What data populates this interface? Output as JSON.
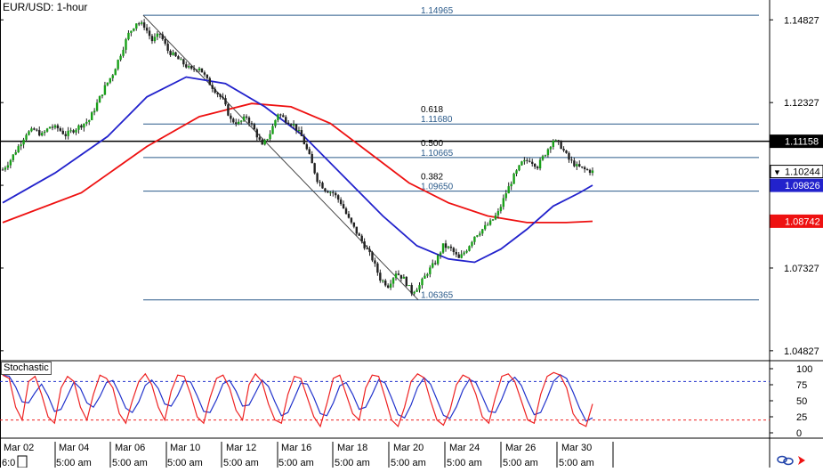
{
  "chart_data": {
    "type": "line",
    "title": "EUR/USD: 1-hour",
    "chart_kind": "candlestick",
    "price_axis": {
      "ticks": [
        "1.14827",
        "1.12327",
        "1.09827",
        "1.07327",
        "1.04827"
      ],
      "tick_values": [
        1.14827,
        1.12327,
        1.09827,
        1.07327,
        1.04827
      ],
      "range": [
        1.04527,
        1.15427
      ]
    },
    "price_tags": [
      {
        "label": "1.11158",
        "value": 1.11158,
        "bg": "#000000",
        "fg": "#ffffff"
      },
      {
        "label": "1.10244",
        "value": 1.10244,
        "bg": "#ffffff",
        "fg": "#000000",
        "arrow": "▼"
      },
      {
        "label": "1.09826",
        "value": 1.09826,
        "bg": "#2222cc",
        "fg": "#ffffff"
      },
      {
        "label": "1.08742",
        "value": 1.08742,
        "bg": "#ee1111",
        "fg": "#ffffff"
      }
    ],
    "horizontal_line": {
      "value": 1.11158,
      "color": "#000000"
    },
    "fibonacci": {
      "color": "#2a5a8a",
      "swing_high": 1.14965,
      "swing_low": 1.06365,
      "levels": [
        {
          "ratio": "",
          "label": "1.14965",
          "value": 1.14965
        },
        {
          "ratio": "0.618",
          "label": "1.11680",
          "value": 1.1168
        },
        {
          "ratio": "0.500",
          "label": "1.10665",
          "value": 1.10665
        },
        {
          "ratio": "0.382",
          "label": "1.09650",
          "value": 1.0965
        },
        {
          "ratio": "",
          "label": "1.06365",
          "value": 1.06365
        }
      ]
    },
    "x_axis": {
      "date_labels": [
        "Mar 02",
        "Mar 04",
        "Mar 06",
        "Mar 10",
        "Mar 12",
        "Mar 16",
        "Mar 18",
        "Mar 20",
        "Mar 24",
        "Mar 26",
        "Mar 30"
      ],
      "time_labels": [
        "6:0",
        "5:00 am",
        "5:00 am",
        "5:00 am",
        "5:00 am",
        "5:00 am",
        "5:00 am",
        "5:00 am",
        "5:00 am",
        "5:00 am",
        "5:00 am"
      ]
    },
    "close_series": [
      [
        0,
        1.103
      ],
      [
        3,
        1.106
      ],
      [
        6,
        1.11
      ],
      [
        9,
        1.114
      ],
      [
        12,
        1.115
      ],
      [
        15,
        1.1135
      ],
      [
        18,
        1.116
      ],
      [
        21,
        1.1155
      ],
      [
        24,
        1.1135
      ],
      [
        27,
        1.115
      ],
      [
        30,
        1.1165
      ],
      [
        33,
        1.118
      ],
      [
        36,
        1.123
      ],
      [
        39,
        1.128
      ],
      [
        42,
        1.132
      ],
      [
        45,
        1.138
      ],
      [
        48,
        1.144
      ],
      [
        51,
        1.1475
      ],
      [
        54,
        1.1465
      ],
      [
        57,
        1.142
      ],
      [
        60,
        1.144
      ],
      [
        63,
        1.139
      ],
      [
        66,
        1.137
      ],
      [
        69,
        1.135
      ],
      [
        72,
        1.133
      ],
      [
        75,
        1.134
      ],
      [
        78,
        1.13
      ],
      [
        81,
        1.127
      ],
      [
        84,
        1.124
      ],
      [
        87,
        1.118
      ],
      [
        90,
        1.117
      ],
      [
        93,
        1.119
      ],
      [
        96,
        1.115
      ],
      [
        99,
        1.11
      ],
      [
        102,
        1.114
      ],
      [
        105,
        1.12
      ],
      [
        108,
        1.118
      ],
      [
        111,
        1.1165
      ],
      [
        114,
        1.113
      ],
      [
        117,
        1.107
      ],
      [
        120,
        1.1
      ],
      [
        123,
        1.097
      ],
      [
        126,
        1.096
      ],
      [
        129,
        1.093
      ],
      [
        132,
        1.088
      ],
      [
        135,
        1.084
      ],
      [
        138,
        1.08
      ],
      [
        141,
        1.076
      ],
      [
        144,
        1.07
      ],
      [
        147,
        1.068
      ],
      [
        150,
        1.072
      ],
      [
        153,
        1.07
      ],
      [
        156,
        1.066
      ],
      [
        159,
        1.068
      ],
      [
        162,
        1.072
      ],
      [
        165,
        1.075
      ],
      [
        168,
        1.08
      ],
      [
        171,
        1.079
      ],
      [
        174,
        1.076
      ],
      [
        177,
        1.079
      ],
      [
        180,
        1.083
      ],
      [
        183,
        1.085
      ],
      [
        186,
        1.087
      ],
      [
        189,
        1.09
      ],
      [
        192,
        1.096
      ],
      [
        195,
        1.101
      ],
      [
        198,
        1.105
      ],
      [
        201,
        1.106
      ],
      [
        204,
        1.104
      ],
      [
        207,
        1.108
      ],
      [
        210,
        1.112
      ],
      [
        213,
        1.11
      ],
      [
        216,
        1.106
      ],
      [
        219,
        1.104
      ],
      [
        222,
        1.103
      ],
      [
        225,
        1.1024
      ]
    ],
    "ma_blue": [
      [
        0,
        1.093
      ],
      [
        20,
        1.102
      ],
      [
        40,
        1.113
      ],
      [
        55,
        1.125
      ],
      [
        70,
        1.131
      ],
      [
        85,
        1.129
      ],
      [
        100,
        1.122
      ],
      [
        115,
        1.113
      ],
      [
        130,
        1.101
      ],
      [
        145,
        1.089
      ],
      [
        158,
        1.08
      ],
      [
        170,
        1.076
      ],
      [
        180,
        1.075
      ],
      [
        190,
        1.079
      ],
      [
        200,
        1.085
      ],
      [
        210,
        1.092
      ],
      [
        220,
        1.096
      ],
      [
        225,
        1.0983
      ]
    ],
    "ma_red": [
      [
        0,
        1.087
      ],
      [
        30,
        1.096
      ],
      [
        55,
        1.11
      ],
      [
        75,
        1.119
      ],
      [
        95,
        1.123
      ],
      [
        110,
        1.122
      ],
      [
        125,
        1.117
      ],
      [
        140,
        1.108
      ],
      [
        155,
        1.099
      ],
      [
        170,
        1.093
      ],
      [
        185,
        1.089
      ],
      [
        200,
        1.087
      ],
      [
        215,
        1.087
      ],
      [
        225,
        1.0874
      ]
    ],
    "stochastic": {
      "label": "Stochastic",
      "ticks": [
        "100",
        "75",
        "50",
        "25",
        "0"
      ],
      "tick_values": [
        100,
        75,
        50,
        25,
        0
      ],
      "overbought": 80,
      "oversold": 20,
      "k_color": "#ee2222",
      "d_color": "#2233cc",
      "values": [
        90,
        85,
        40,
        20,
        80,
        88,
        60,
        25,
        15,
        70,
        88,
        80,
        40,
        20,
        60,
        90,
        85,
        70,
        30,
        15,
        50,
        80,
        92,
        75,
        40,
        20,
        65,
        90,
        88,
        60,
        25,
        15,
        55,
        85,
        90,
        70,
        35,
        20,
        75,
        92,
        80,
        45,
        20,
        15,
        60,
        88,
        85,
        55,
        25,
        10,
        45,
        85,
        90,
        60,
        30,
        20,
        70,
        90,
        88,
        55,
        20,
        10,
        40,
        80,
        92,
        86,
        50,
        20,
        12,
        35,
        75,
        90,
        85,
        60,
        25,
        15,
        55,
        88,
        92,
        80,
        50,
        20,
        15,
        60,
        88,
        94,
        90,
        70,
        30,
        15,
        10,
        45
      ]
    }
  },
  "footer": {
    "icons": [
      "link-icon",
      "arrow-icon"
    ]
  }
}
